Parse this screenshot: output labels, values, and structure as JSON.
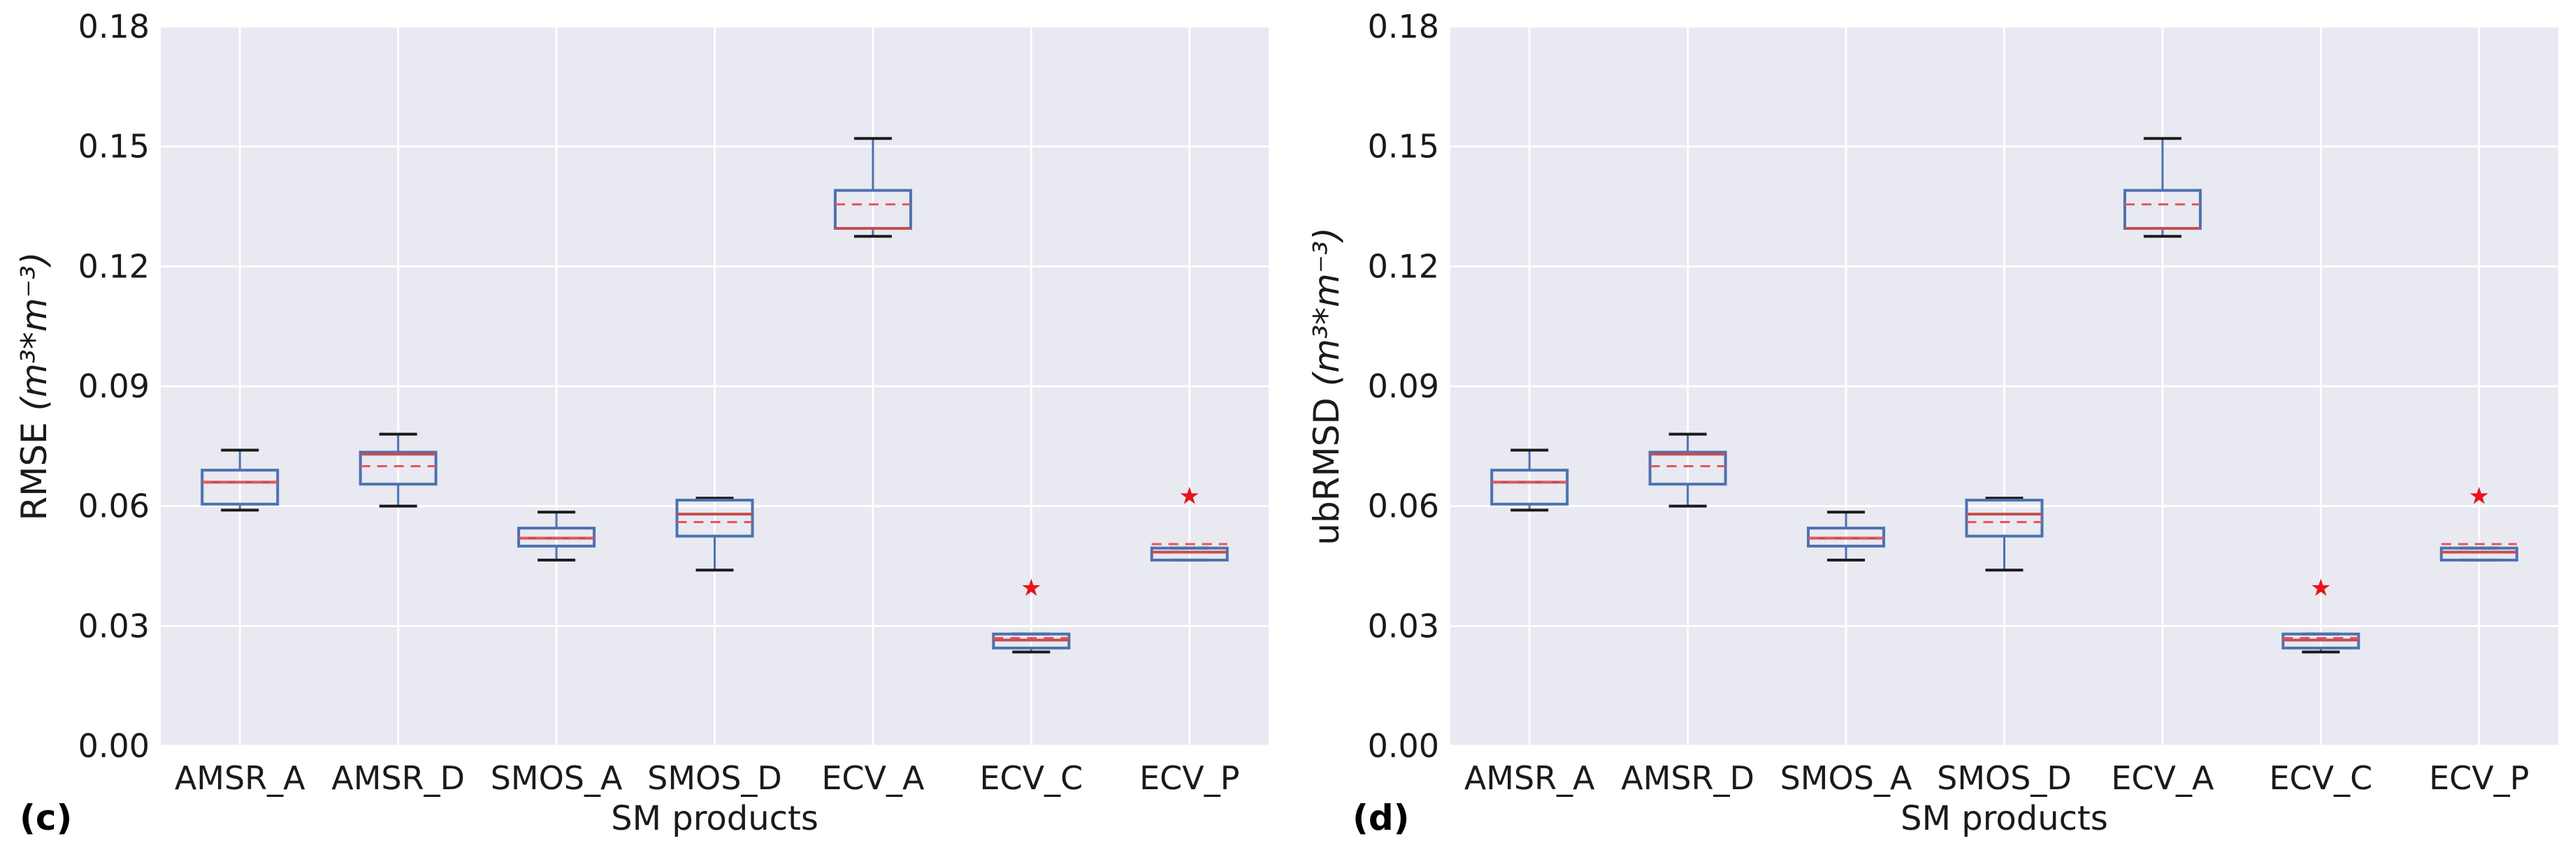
{
  "colors": {
    "plot_bg": "#e8e9f1",
    "grid": "#ffffff",
    "box": "#4c72b0",
    "median": "#c44e52",
    "mean": "#e8545a",
    "whisker": "#4c72b0",
    "cap": "#1a1a1a",
    "flier": "#e8141a"
  },
  "chart_data": [
    {
      "type": "box",
      "panel_label": "(c)",
      "ylabel": "RMSE",
      "ylabel_unit": "(m³*m⁻³)",
      "xlabel": "SM products",
      "ylim": [
        0,
        0.18
      ],
      "yticks": [
        "0.00",
        "0.03",
        "0.06",
        "0.09",
        "0.12",
        "0.15",
        "0.18"
      ],
      "grid": true,
      "categories": [
        "AMSR_A",
        "AMSR_D",
        "SMOS_A",
        "SMOS_D",
        "ECV_A",
        "ECV_C",
        "ECV_P"
      ],
      "boxes": [
        {
          "whislo": 0.059,
          "q1": 0.0605,
          "med": 0.066,
          "mean": 0.066,
          "q3": 0.069,
          "whishi": 0.074,
          "fliers": []
        },
        {
          "whislo": 0.06,
          "q1": 0.0655,
          "med": 0.073,
          "mean": 0.07,
          "q3": 0.0735,
          "whishi": 0.078,
          "fliers": []
        },
        {
          "whislo": 0.0465,
          "q1": 0.05,
          "med": 0.052,
          "mean": 0.052,
          "q3": 0.0545,
          "whishi": 0.0585,
          "fliers": []
        },
        {
          "whislo": 0.044,
          "q1": 0.0525,
          "med": 0.058,
          "mean": 0.056,
          "q3": 0.0615,
          "whishi": 0.062,
          "fliers": []
        },
        {
          "whislo": 0.1275,
          "q1": 0.1295,
          "med": 0.1295,
          "mean": 0.1355,
          "q3": 0.139,
          "whishi": 0.152,
          "fliers": []
        },
        {
          "whislo": 0.0235,
          "q1": 0.0245,
          "med": 0.0265,
          "mean": 0.027,
          "q3": 0.028,
          "whishi": 0.028,
          "fliers": [
            0.04
          ]
        },
        {
          "whislo": 0.0465,
          "q1": 0.0465,
          "med": 0.0485,
          "mean": 0.0505,
          "q3": 0.0495,
          "whishi": 0.0495,
          "fliers": [
            0.063
          ]
        }
      ]
    },
    {
      "type": "box",
      "panel_label": "(d)",
      "ylabel": "ubRMSD",
      "ylabel_unit": "(m³*m⁻³)",
      "xlabel": "SM products",
      "ylim": [
        0,
        0.18
      ],
      "yticks": [
        "0.00",
        "0.03",
        "0.06",
        "0.09",
        "0.12",
        "0.15",
        "0.18"
      ],
      "grid": true,
      "categories": [
        "AMSR_A",
        "AMSR_D",
        "SMOS_A",
        "SMOS_D",
        "ECV_A",
        "ECV_C",
        "ECV_P"
      ],
      "boxes": [
        {
          "whislo": 0.059,
          "q1": 0.0605,
          "med": 0.066,
          "mean": 0.066,
          "q3": 0.069,
          "whishi": 0.074,
          "fliers": []
        },
        {
          "whislo": 0.06,
          "q1": 0.0655,
          "med": 0.073,
          "mean": 0.07,
          "q3": 0.0735,
          "whishi": 0.078,
          "fliers": []
        },
        {
          "whislo": 0.0465,
          "q1": 0.05,
          "med": 0.052,
          "mean": 0.052,
          "q3": 0.0545,
          "whishi": 0.0585,
          "fliers": []
        },
        {
          "whislo": 0.044,
          "q1": 0.0525,
          "med": 0.058,
          "mean": 0.056,
          "q3": 0.0615,
          "whishi": 0.062,
          "fliers": []
        },
        {
          "whislo": 0.1275,
          "q1": 0.1295,
          "med": 0.1295,
          "mean": 0.1355,
          "q3": 0.139,
          "whishi": 0.152,
          "fliers": []
        },
        {
          "whislo": 0.0235,
          "q1": 0.0245,
          "med": 0.0265,
          "mean": 0.027,
          "q3": 0.028,
          "whishi": 0.028,
          "fliers": [
            0.04
          ]
        },
        {
          "whislo": 0.0465,
          "q1": 0.0465,
          "med": 0.0485,
          "mean": 0.0505,
          "q3": 0.0495,
          "whishi": 0.0495,
          "fliers": [
            0.063
          ]
        }
      ]
    }
  ]
}
